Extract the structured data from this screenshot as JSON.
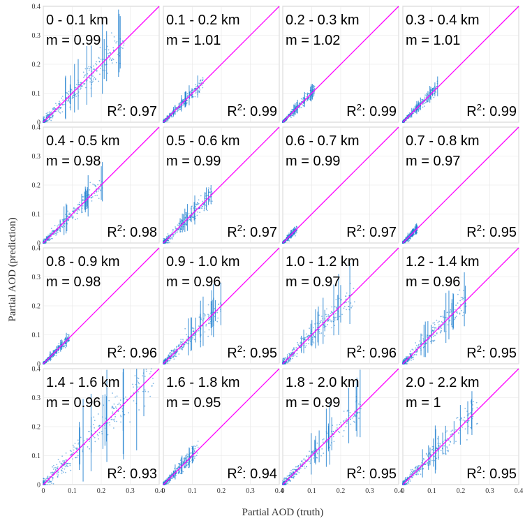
{
  "figure": {
    "xlabel": "Partial AOD (truth)",
    "ylabel": "Partial AOD (prediction)",
    "x_ticks": [
      "0",
      "0.1",
      "0.2",
      "0.3",
      "0.4"
    ],
    "y_ticks": [
      "0",
      "0.1",
      "0.2",
      "0.3",
      "0.4"
    ],
    "colors": {
      "points": "#1f7fd0",
      "identity_line": "#ff00ff",
      "grid": "#e6e6e6",
      "panel_border": "#bbbbbb"
    }
  },
  "chart_data": [
    {
      "type": "scatter",
      "altitude": "0 - 0.1 km",
      "slope": "m = 0.99",
      "r2_prefix": "R",
      "r2_sup": "2",
      "r2_value": ": 0.97",
      "xlim": [
        0,
        0.4
      ],
      "ylim": [
        0,
        0.4
      ],
      "max_truth": 0.28,
      "spread": 0.022
    },
    {
      "type": "scatter",
      "altitude": "0.1 - 0.2 km",
      "slope": "m = 1.01",
      "r2_prefix": "R",
      "r2_sup": "2",
      "r2_value": ": 0.99",
      "xlim": [
        0,
        0.4
      ],
      "ylim": [
        0,
        0.4
      ],
      "max_truth": 0.14,
      "spread": 0.009
    },
    {
      "type": "scatter",
      "altitude": "0.2 - 0.3 km",
      "slope": "m = 1.02",
      "r2_prefix": "R",
      "r2_sup": "2",
      "r2_value": ": 0.99",
      "xlim": [
        0,
        0.4
      ],
      "ylim": [
        0,
        0.4
      ],
      "max_truth": 0.11,
      "spread": 0.008
    },
    {
      "type": "scatter",
      "altitude": "0.3 - 0.4 km",
      "slope": "m = 1.01",
      "r2_prefix": "R",
      "r2_sup": "2",
      "r2_value": ": 0.99",
      "xlim": [
        0,
        0.4
      ],
      "ylim": [
        0,
        0.4
      ],
      "max_truth": 0.12,
      "spread": 0.008
    },
    {
      "type": "scatter",
      "altitude": "0.4 - 0.5 km",
      "slope": "m = 0.98",
      "r2_prefix": "R",
      "r2_sup": "2",
      "r2_value": ": 0.98",
      "xlim": [
        0,
        0.4
      ],
      "ylim": [
        0,
        0.4
      ],
      "max_truth": 0.21,
      "spread": 0.015
    },
    {
      "type": "scatter",
      "altitude": "0.5 - 0.6 km",
      "slope": "m = 0.99",
      "r2_prefix": "R",
      "r2_sup": "2",
      "r2_value": ": 0.97",
      "xlim": [
        0,
        0.4
      ],
      "ylim": [
        0,
        0.4
      ],
      "max_truth": 0.17,
      "spread": 0.014
    },
    {
      "type": "scatter",
      "altitude": "0.6 - 0.7 km",
      "slope": "m = 0.99",
      "r2_prefix": "R",
      "r2_sup": "2",
      "r2_value": ": 0.97",
      "xlim": [
        0,
        0.4
      ],
      "ylim": [
        0,
        0.4
      ],
      "max_truth": 0.05,
      "spread": 0.006
    },
    {
      "type": "scatter",
      "altitude": "0.7 - 0.8 km",
      "slope": "m = 0.97",
      "r2_prefix": "R",
      "r2_sup": "2",
      "r2_value": ": 0.95",
      "xlim": [
        0,
        0.4
      ],
      "ylim": [
        0,
        0.4
      ],
      "max_truth": 0.05,
      "spread": 0.007
    },
    {
      "type": "scatter",
      "altitude": "0.8 - 0.9 km",
      "slope": "m = 0.98",
      "r2_prefix": "R",
      "r2_sup": "2",
      "r2_value": ": 0.96",
      "xlim": [
        0,
        0.4
      ],
      "ylim": [
        0,
        0.4
      ],
      "max_truth": 0.09,
      "spread": 0.007
    },
    {
      "type": "scatter",
      "altitude": "0.9 - 1.0 km",
      "slope": "m = 0.96",
      "r2_prefix": "R",
      "r2_sup": "2",
      "r2_value": ": 0.95",
      "xlim": [
        0,
        0.4
      ],
      "ylim": [
        0,
        0.4
      ],
      "max_truth": 0.2,
      "spread": 0.018
    },
    {
      "type": "scatter",
      "altitude": "1.0 - 1.2 km",
      "slope": "m = 0.97",
      "r2_prefix": "R",
      "r2_sup": "2",
      "r2_value": ": 0.96",
      "xlim": [
        0,
        0.4
      ],
      "ylim": [
        0,
        0.4
      ],
      "max_truth": 0.25,
      "spread": 0.02
    },
    {
      "type": "scatter",
      "altitude": "1.2 - 1.4 km",
      "slope": "m = 0.96",
      "r2_prefix": "R",
      "r2_sup": "2",
      "r2_value": ": 0.95",
      "xlim": [
        0,
        0.4
      ],
      "ylim": [
        0,
        0.4
      ],
      "max_truth": 0.22,
      "spread": 0.018
    },
    {
      "type": "scatter",
      "altitude": "1.4 - 1.6 km",
      "slope": "m = 0.96",
      "r2_prefix": "R",
      "r2_sup": "2",
      "r2_value": ": 0.93",
      "xlim": [
        0,
        0.4
      ],
      "ylim": [
        0,
        0.4
      ],
      "max_truth": 0.38,
      "spread": 0.03
    },
    {
      "type": "scatter",
      "altitude": "1.6 - 1.8 km",
      "slope": "m = 0.95",
      "r2_prefix": "R",
      "r2_sup": "2",
      "r2_value": ": 0.94",
      "xlim": [
        0,
        0.4
      ],
      "ylim": [
        0,
        0.4
      ],
      "max_truth": 0.12,
      "spread": 0.012
    },
    {
      "type": "scatter",
      "altitude": "1.8 - 2.0 km",
      "slope": "m = 0.99",
      "r2_prefix": "R",
      "r2_sup": "2",
      "r2_value": ": 0.95",
      "xlim": [
        0,
        0.4
      ],
      "ylim": [
        0,
        0.4
      ],
      "max_truth": 0.27,
      "spread": 0.02
    },
    {
      "type": "scatter",
      "altitude": "2.0 - 2.2 km",
      "slope": "m = 1",
      "r2_prefix": "R",
      "r2_sup": "2",
      "r2_value": ": 0.95",
      "xlim": [
        0,
        0.4
      ],
      "ylim": [
        0,
        0.4
      ],
      "max_truth": 0.26,
      "spread": 0.02
    }
  ]
}
